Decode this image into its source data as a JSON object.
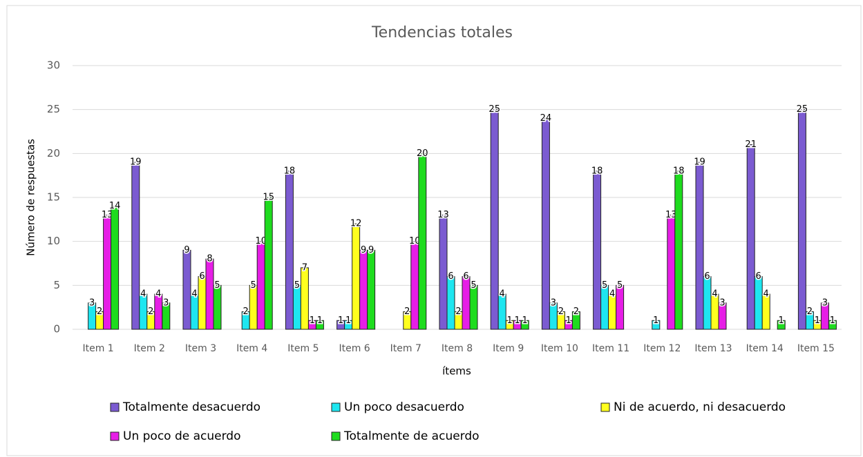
{
  "chart_data": {
    "type": "bar",
    "title": "Tendencias totales",
    "x_label": "ítems",
    "y_label": "Número de respuestas",
    "categories": [
      "Item 1",
      "Item 2",
      "Item 3",
      "Item 4",
      "Item 5",
      "Item 6",
      "Item 7",
      "Item 8",
      "Item 9",
      "Item 10",
      "Item 11",
      "Item 12",
      "Item 13",
      "Item 14",
      "Item 15"
    ],
    "series": [
      {
        "name": "Totalmente desacuerdo",
        "color": "#7b5bd1",
        "values": [
          null,
          19,
          9,
          null,
          18,
          1,
          null,
          13,
          25,
          24,
          18,
          null,
          19,
          21,
          25
        ]
      },
      {
        "name": "Un poco desacuerdo",
        "color": "#1ee6f0",
        "values": [
          3,
          4,
          4,
          2,
          5,
          1,
          null,
          6,
          4,
          3,
          5,
          1,
          6,
          6,
          2
        ]
      },
      {
        "name": "Ni de acuerdo, ni desacuerdo",
        "color": "#ffff1e",
        "values": [
          2,
          2,
          6,
          5,
          7,
          12,
          2,
          2,
          1,
          2,
          4,
          null,
          4,
          4,
          1
        ]
      },
      {
        "name": "Un poco de acuerdo",
        "color": "#e61ee6",
        "values": [
          13,
          4,
          8,
          10,
          1,
          9,
          10,
          6,
          1,
          1,
          5,
          13,
          3,
          null,
          3
        ]
      },
      {
        "name": "Totalmente de acuerdo",
        "color": "#1edc1e",
        "values": [
          14,
          3,
          5,
          15,
          1,
          9,
          20,
          5,
          1,
          2,
          null,
          18,
          null,
          1,
          1
        ]
      }
    ],
    "ylim": [
      0,
      30
    ],
    "yticks": [
      0,
      5,
      10,
      15,
      20,
      25,
      30
    ],
    "grid": true,
    "legend": "bottom"
  }
}
